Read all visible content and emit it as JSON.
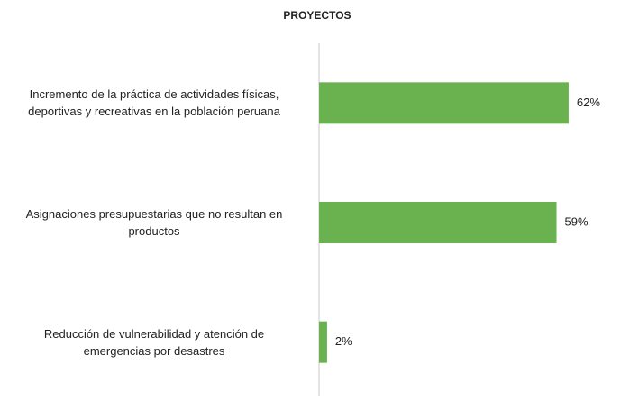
{
  "chart_data": {
    "type": "hbar",
    "title": "PROYECTOS",
    "categories": [
      "Incremento de la práctica de actividades físicas,\ndeportivas y recreativas en la población peruana",
      "Asignaciones presupuestarias que no resultan en\nproductos",
      "Reducción de vulnerabilidad y atención de\nemergencias por desastres"
    ],
    "values": [
      62,
      59,
      2
    ],
    "value_labels": [
      "62%",
      "59%",
      "2%"
    ],
    "color": "#6ab250",
    "xlim": [
      0,
      75
    ]
  }
}
